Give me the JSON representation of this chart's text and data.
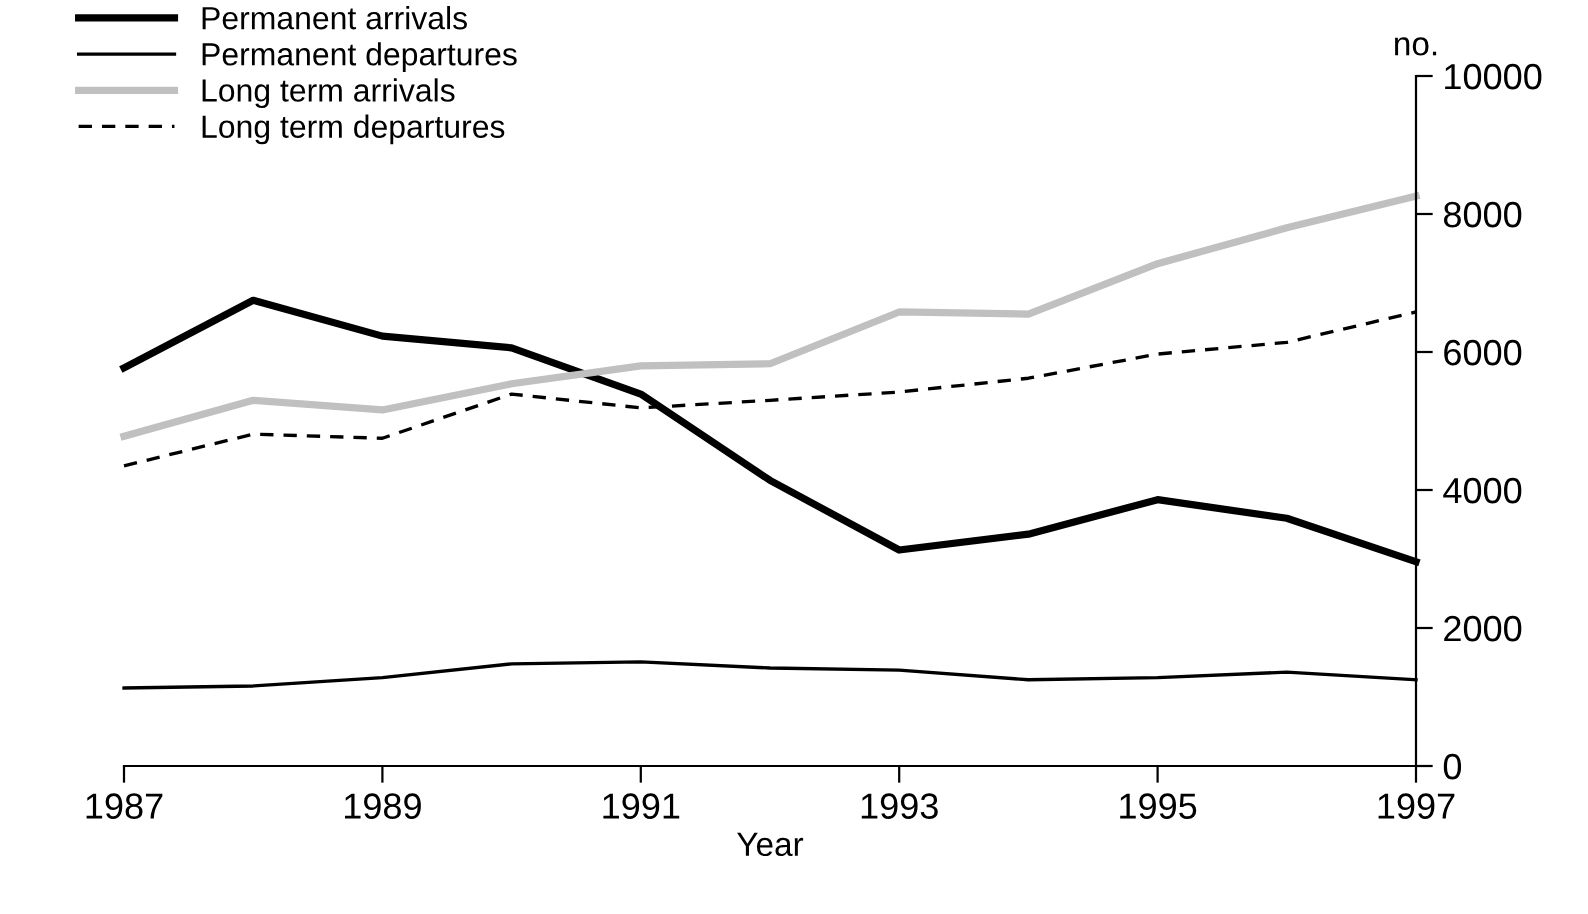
{
  "chart_data": {
    "type": "line",
    "xlabel": "Year",
    "ylabel": "no.",
    "x": [
      1987,
      1988,
      1989,
      1990,
      1991,
      1992,
      1993,
      1994,
      1995,
      1996,
      1997
    ],
    "series": [
      {
        "name": "Permanent arrivals",
        "color": "#000000",
        "line_style": "solid",
        "values": [
          5770,
          6750,
          6230,
          6060,
          5390,
          4140,
          3130,
          3360,
          3860,
          3590,
          2960
        ]
      },
      {
        "name": "Permanent departures",
        "color": "#000000",
        "line_style": "solid",
        "values": [
          1130,
          1160,
          1280,
          1480,
          1510,
          1420,
          1390,
          1250,
          1280,
          1360,
          1250
        ]
      },
      {
        "name": "Long term arrivals",
        "color": "#c0c0c0",
        "line_style": "solid",
        "values": [
          4780,
          5300,
          5160,
          5540,
          5800,
          5830,
          6580,
          6550,
          7280,
          7800,
          8260
        ]
      },
      {
        "name": "Long term departures",
        "color": "#000000",
        "line_style": "dashed",
        "values": [
          4350,
          4810,
          4750,
          5390,
          5190,
          5300,
          5420,
          5620,
          5970,
          6140,
          6580
        ]
      }
    ],
    "xlim": [
      1987,
      1997
    ],
    "xticks": [
      1987,
      1989,
      1991,
      1993,
      1995,
      1997
    ],
    "ylim": [
      0,
      10000
    ],
    "yticks": [
      0,
      2000,
      4000,
      6000,
      8000,
      10000
    ],
    "grid": false,
    "legend": "top left",
    "marker": "none"
  }
}
